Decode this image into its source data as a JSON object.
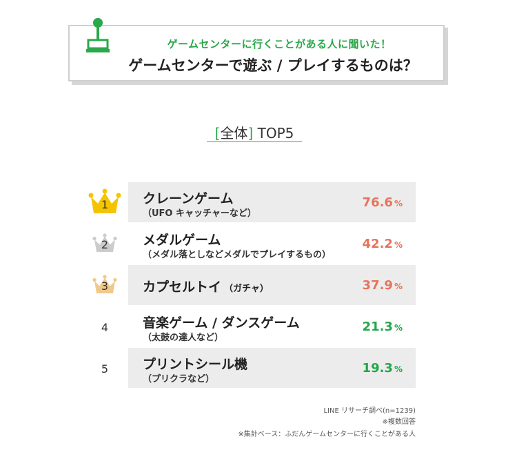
{
  "header": {
    "subtitle": "ゲームセンターに行くことがある人に聞いた！",
    "title": "ゲームセンターで遊ぶ / プレイするものは？",
    "icon": "joystick-icon"
  },
  "section": {
    "open_bracket": "[",
    "label": "全体",
    "close_bracket": "]",
    "suffix": "TOP5"
  },
  "colors": {
    "accent_green": "#2aa84a",
    "top_value": "#e8735a",
    "low_value": "#22a64a",
    "gold": "#f5c400",
    "silver": "#cccccc",
    "bronze": "#f0c98a"
  },
  "chart_data": {
    "type": "table",
    "title": "ゲームセンターで遊ぶ / プレイするものは？",
    "unit": "%",
    "rows": [
      {
        "rank": "1",
        "label": "クレーンゲーム",
        "note": "（UFO キャッチャーなど）",
        "value": 76.6,
        "value_text": "76.6",
        "crown": "gold"
      },
      {
        "rank": "2",
        "label": "メダルゲーム",
        "note": "（メダル落としなどメダルでプレイするもの）",
        "value": 42.2,
        "value_text": "42.2",
        "crown": "silver"
      },
      {
        "rank": "3",
        "label": "カプセルトイ",
        "note": "（ガチャ）",
        "value": 37.9,
        "value_text": "37.9",
        "crown": "bronze"
      },
      {
        "rank": "4",
        "label": "音楽ゲーム / ダンスゲーム",
        "note": "（太鼓の達人など）",
        "value": 21.3,
        "value_text": "21.3",
        "crown": ""
      },
      {
        "rank": "5",
        "label": "プリントシール機",
        "note": "（プリクラなど）",
        "value": 19.3,
        "value_text": "19.3",
        "crown": ""
      }
    ]
  },
  "footnotes": {
    "source": "LINE リサーチ調べ(n=1239)",
    "multi": "※複数回答",
    "base": "※集計ベース：ふだんゲームセンターに行くことがある人"
  }
}
